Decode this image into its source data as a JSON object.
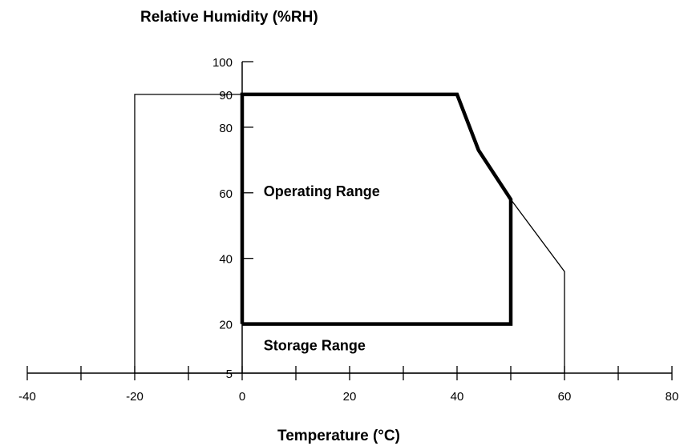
{
  "chart_data": {
    "type": "area",
    "title": "",
    "ylabel": "Relative Humidity (%RH)",
    "xlabel": "Temperature (°C)",
    "xlim": [
      -40,
      80
    ],
    "ylim": [
      5,
      100
    ],
    "x_ticks": [
      -40,
      -30,
      -20,
      -10,
      0,
      10,
      20,
      30,
      40,
      50,
      60,
      70,
      80
    ],
    "x_tick_labels": [
      {
        "value": -40,
        "label": "-40"
      },
      {
        "value": -20,
        "label": "-20"
      },
      {
        "value": 0,
        "label": "0"
      },
      {
        "value": 20,
        "label": "20"
      },
      {
        "value": 40,
        "label": "40"
      },
      {
        "value": 60,
        "label": "60"
      },
      {
        "value": 80,
        "label": "80"
      }
    ],
    "y_ticks": [
      20,
      40,
      60,
      80,
      100
    ],
    "y_tick_labels": [
      {
        "value": 100,
        "label": "100"
      },
      {
        "value": 90,
        "label": "90"
      },
      {
        "value": 80,
        "label": "80"
      },
      {
        "value": 60,
        "label": "60"
      },
      {
        "value": 40,
        "label": "40"
      },
      {
        "value": 20,
        "label": "20"
      },
      {
        "value": 5,
        "label": "5"
      }
    ],
    "grid": false,
    "series": [
      {
        "name": "Operating Range",
        "points": [
          [
            0,
            20
          ],
          [
            0,
            90
          ],
          [
            40,
            90
          ],
          [
            44,
            73
          ],
          [
            50,
            58
          ],
          [
            50,
            20
          ]
        ]
      },
      {
        "name": "Storage Range",
        "points": [
          [
            -20,
            5
          ],
          [
            -20,
            90
          ],
          [
            40,
            90
          ],
          [
            44,
            73
          ],
          [
            50,
            58
          ],
          [
            60,
            36
          ],
          [
            60,
            5
          ]
        ]
      }
    ]
  },
  "colors": {
    "ink": "#000000",
    "background": "#ffffff"
  }
}
